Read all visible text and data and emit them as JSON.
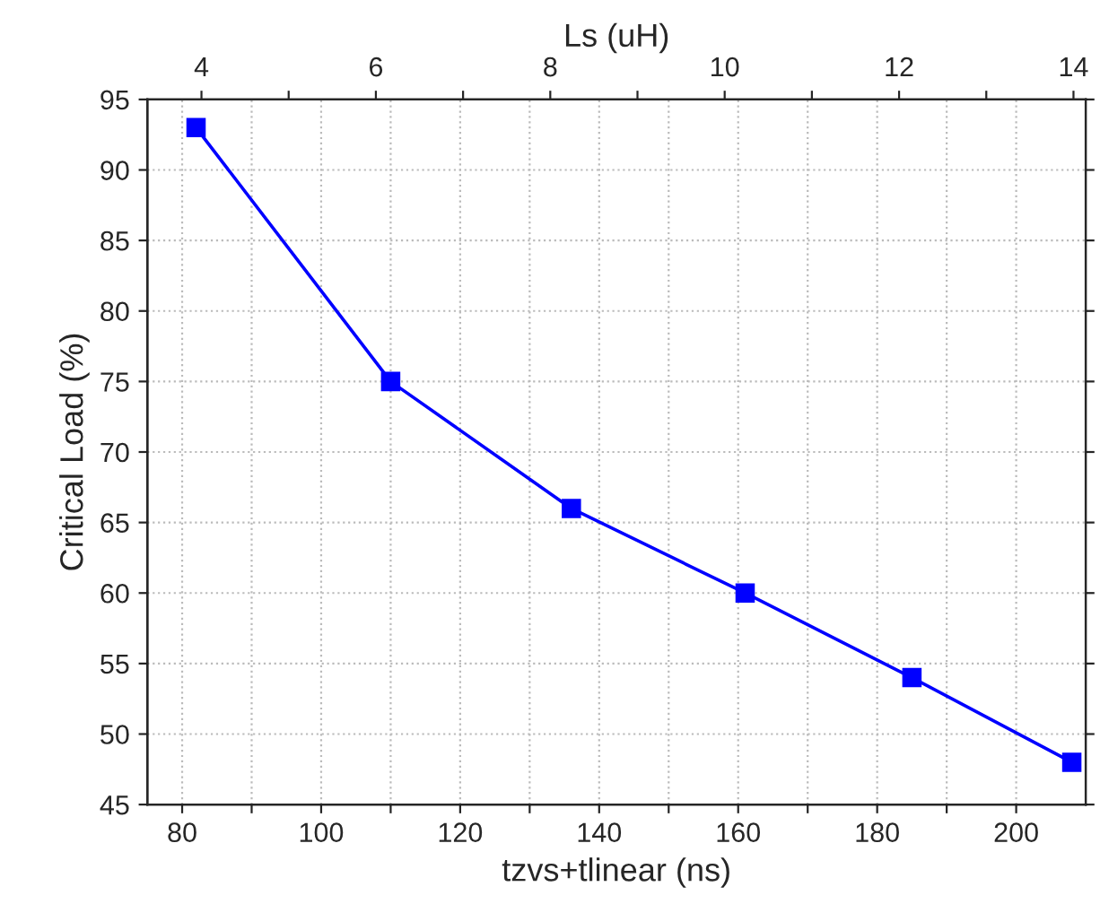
{
  "chart_data": {
    "type": "line",
    "xlabel": "tzvs+tlinear (ns)",
    "ylabel": "Critical Load (%)",
    "x2label": "Ls (uH)",
    "x": [
      82,
      110,
      136,
      161,
      185,
      208
    ],
    "series": [
      {
        "color": "#0000ff",
        "values": [
          93,
          75,
          66,
          60,
          54,
          48
        ]
      }
    ],
    "xlim": [
      75,
      210
    ],
    "xticks": [
      80,
      {
        "value": 90,
        "label": null
      },
      100,
      {
        "value": 110,
        "label": null
      },
      120,
      {
        "value": 130,
        "label": null
      },
      140,
      {
        "value": 150,
        "label": null
      },
      160,
      {
        "value": 170,
        "label": null
      },
      180,
      {
        "value": 190,
        "label": null
      },
      200
    ],
    "x2lim": [
      3.38,
      14.14
    ],
    "x2ticks": [
      4,
      {
        "value": 5,
        "label": null
      },
      6,
      {
        "value": 7,
        "label": null
      },
      8,
      {
        "value": 9,
        "label": null
      },
      10,
      {
        "value": 11,
        "label": null
      },
      12,
      {
        "value": 13,
        "label": null
      },
      14
    ],
    "ylim": [
      45,
      95
    ],
    "yticks": [
      45,
      50,
      55,
      60,
      65,
      70,
      75,
      80,
      85,
      90,
      95
    ],
    "grid": true,
    "marker": "square",
    "line_style": "solid",
    "legend": false
  }
}
